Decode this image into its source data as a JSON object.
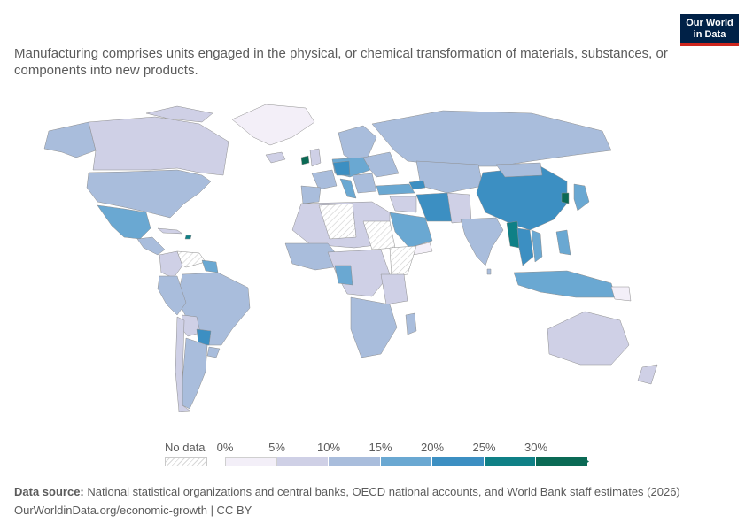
{
  "header": {
    "subtitle": "Manufacturing comprises units engaged in the physical, or chemical transformation of materials, substances, or components into new products.",
    "logo_line1": "Our World",
    "logo_line2": "in Data"
  },
  "legend": {
    "no_data_label": "No data",
    "ticks": [
      "0%",
      "5%",
      "10%",
      "15%",
      "20%",
      "25%",
      "30%"
    ],
    "colors": [
      "#f3eff8",
      "#cfd0e6",
      "#a9bddc",
      "#6aa8d2",
      "#3c8fc2",
      "#0f8086",
      "#0b6a55"
    ]
  },
  "footer": {
    "source_label": "Data source:",
    "source_text": "National statistical organizations and central banks, OECD national accounts, and World Bank staff estimates (2026)",
    "link_text": "OurWorldinData.org/economic-growth | CC BY"
  }
}
